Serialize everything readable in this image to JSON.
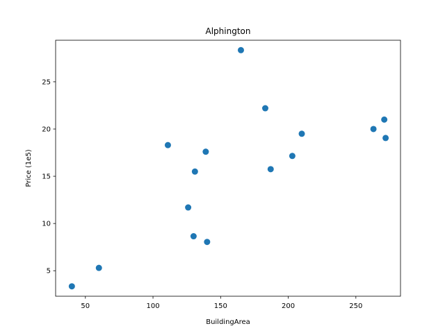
{
  "chart_data": {
    "type": "scatter",
    "title": "Alphington",
    "xlabel": "BuildingArea",
    "ylabel": "Price (1e5)",
    "xlim": [
      28,
      283
    ],
    "ylim": [
      2.3,
      29.4
    ],
    "xticks": [
      50,
      100,
      150,
      200,
      250
    ],
    "yticks": [
      5,
      10,
      15,
      20,
      25
    ],
    "grid": false,
    "legend": "none",
    "marker_color": "#1f77b4",
    "points": [
      {
        "x": 40,
        "y": 3.35
      },
      {
        "x": 60,
        "y": 5.3
      },
      {
        "x": 111,
        "y": 18.3
      },
      {
        "x": 126,
        "y": 11.7
      },
      {
        "x": 130,
        "y": 8.65
      },
      {
        "x": 131,
        "y": 15.5
      },
      {
        "x": 139,
        "y": 17.6
      },
      {
        "x": 140,
        "y": 8.05
      },
      {
        "x": 165,
        "y": 28.35
      },
      {
        "x": 183,
        "y": 22.2
      },
      {
        "x": 187,
        "y": 15.75
      },
      {
        "x": 203,
        "y": 17.15
      },
      {
        "x": 210,
        "y": 19.5
      },
      {
        "x": 263,
        "y": 20.0
      },
      {
        "x": 271,
        "y": 21.0
      },
      {
        "x": 272,
        "y": 19.05
      }
    ]
  }
}
